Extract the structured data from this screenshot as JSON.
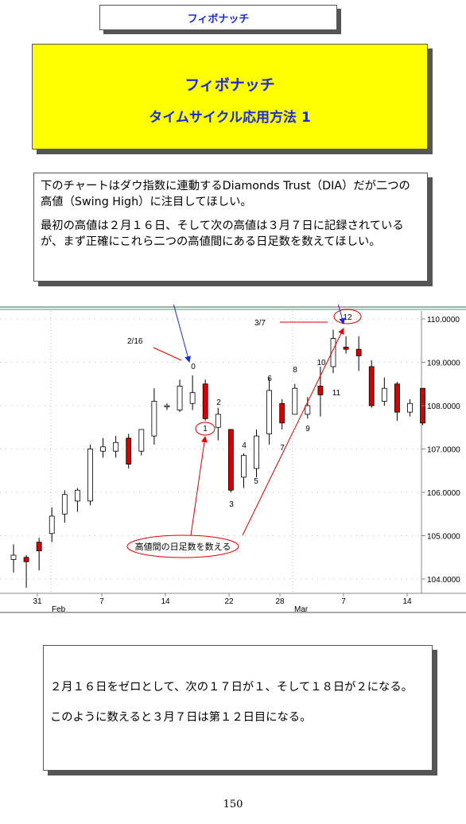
{
  "header": {
    "title": "フィボナッチ"
  },
  "banner": {
    "title": "フィボナッチ",
    "subtitle": "タイムサイクル応用方法 1"
  },
  "note1": {
    "line1": "下のチャートはダウ指数に連動するDiamonds Trust（DIA）だが二つの高値（Swing High）に注目してほしい。",
    "line2": "最初の高値は２月１６日、そして次の高値は３月７日に記録されているが、まず正確にこれら二つの高値間にある日足数を数えてほしい。"
  },
  "chart_data": {
    "type": "candlestick",
    "ylim": [
      103.7,
      110.2
    ],
    "yticks": [
      "110.0000",
      "109.0000",
      "108.0000",
      "107.0000",
      "106.0000",
      "105.0000",
      "104.0000"
    ],
    "xticks": [
      "31",
      "7",
      "14",
      "22",
      "28",
      "7",
      "14"
    ],
    "month_labels": [
      "Feb",
      "Mar"
    ],
    "candles": [
      {
        "o": 104.45,
        "h": 104.8,
        "l": 104.15,
        "c": 104.55,
        "up": true
      },
      {
        "o": 104.5,
        "h": 104.55,
        "l": 103.8,
        "c": 104.4,
        "up": false
      },
      {
        "o": 104.65,
        "h": 104.95,
        "l": 104.2,
        "c": 104.85,
        "up": false
      },
      {
        "o": 105.05,
        "h": 105.65,
        "l": 104.85,
        "c": 105.45,
        "up": true
      },
      {
        "o": 105.5,
        "h": 106.05,
        "l": 105.3,
        "c": 105.95,
        "up": true
      },
      {
        "o": 105.8,
        "h": 106.1,
        "l": 105.55,
        "c": 106.05,
        "up": true
      },
      {
        "o": 105.8,
        "h": 107.1,
        "l": 105.7,
        "c": 107.0,
        "up": true
      },
      {
        "o": 106.95,
        "h": 107.25,
        "l": 106.8,
        "c": 107.05,
        "up": true
      },
      {
        "o": 106.95,
        "h": 107.3,
        "l": 106.8,
        "c": 107.15,
        "up": true
      },
      {
        "o": 107.25,
        "h": 107.35,
        "l": 106.55,
        "c": 106.65,
        "up": false
      },
      {
        "o": 106.95,
        "h": 107.4,
        "l": 106.85,
        "c": 107.45,
        "up": true
      },
      {
        "o": 107.3,
        "h": 108.4,
        "l": 107.1,
        "c": 108.1,
        "up": true
      },
      {
        "o": 108.0,
        "h": 108.05,
        "l": 107.9,
        "c": 108.0,
        "up": true
      },
      {
        "o": 107.9,
        "h": 108.6,
        "l": 107.85,
        "c": 108.45,
        "up": true
      },
      {
        "o": 108.05,
        "h": 108.7,
        "l": 107.9,
        "c": 108.3,
        "up": true
      },
      {
        "o": 108.5,
        "h": 108.6,
        "l": 107.65,
        "c": 107.7,
        "up": false
      },
      {
        "o": 107.5,
        "h": 107.95,
        "l": 107.2,
        "c": 107.8,
        "up": true
      },
      {
        "o": 107.45,
        "h": 107.45,
        "l": 106.0,
        "c": 106.05,
        "up": false
      },
      {
        "o": 106.35,
        "h": 106.9,
        "l": 106.1,
        "c": 106.85,
        "up": true
      },
      {
        "o": 106.55,
        "h": 107.45,
        "l": 106.35,
        "c": 107.3,
        "up": true
      },
      {
        "o": 107.35,
        "h": 108.65,
        "l": 107.1,
        "c": 108.35,
        "up": true
      },
      {
        "o": 108.05,
        "h": 108.15,
        "l": 107.45,
        "c": 107.6,
        "up": false
      },
      {
        "o": 107.8,
        "h": 108.5,
        "l": 107.8,
        "c": 108.4,
        "up": true
      },
      {
        "o": 107.8,
        "h": 108.2,
        "l": 107.7,
        "c": 108.0,
        "up": true
      },
      {
        "o": 108.45,
        "h": 108.9,
        "l": 107.75,
        "c": 108.25,
        "up": false
      },
      {
        "o": 108.9,
        "h": 109.75,
        "l": 108.75,
        "c": 109.55,
        "up": true
      },
      {
        "o": 109.35,
        "h": 109.6,
        "l": 109.2,
        "c": 109.3,
        "up": false
      },
      {
        "o": 109.3,
        "h": 109.6,
        "l": 108.8,
        "c": 109.15,
        "up": false
      },
      {
        "o": 108.9,
        "h": 109.05,
        "l": 107.95,
        "c": 108.0,
        "up": false
      },
      {
        "o": 108.1,
        "h": 108.65,
        "l": 108.0,
        "c": 108.4,
        "up": true
      },
      {
        "o": 108.5,
        "h": 108.55,
        "l": 107.65,
        "c": 107.85,
        "up": false
      },
      {
        "o": 107.85,
        "h": 108.15,
        "l": 107.75,
        "c": 108.05,
        "up": true
      },
      {
        "o": 108.4,
        "h": 108.4,
        "l": 107.55,
        "c": 107.6,
        "up": false
      }
    ],
    "annotations": {
      "date_2_16": "2/16",
      "date_3_7": "3/7",
      "counts": [
        "0",
        "1",
        "2",
        "3",
        "4",
        "5",
        "6",
        "7",
        "8",
        "9",
        "10",
        "11",
        "12"
      ],
      "callout": "高値間の日足数を数える"
    }
  },
  "note2": {
    "line1": "２月１６日をゼロとして、次の１７日が１、そして１８日が２になる。",
    "line2": "このように数えると３月７日は第１２日目になる。"
  },
  "page": {
    "number": "150"
  }
}
